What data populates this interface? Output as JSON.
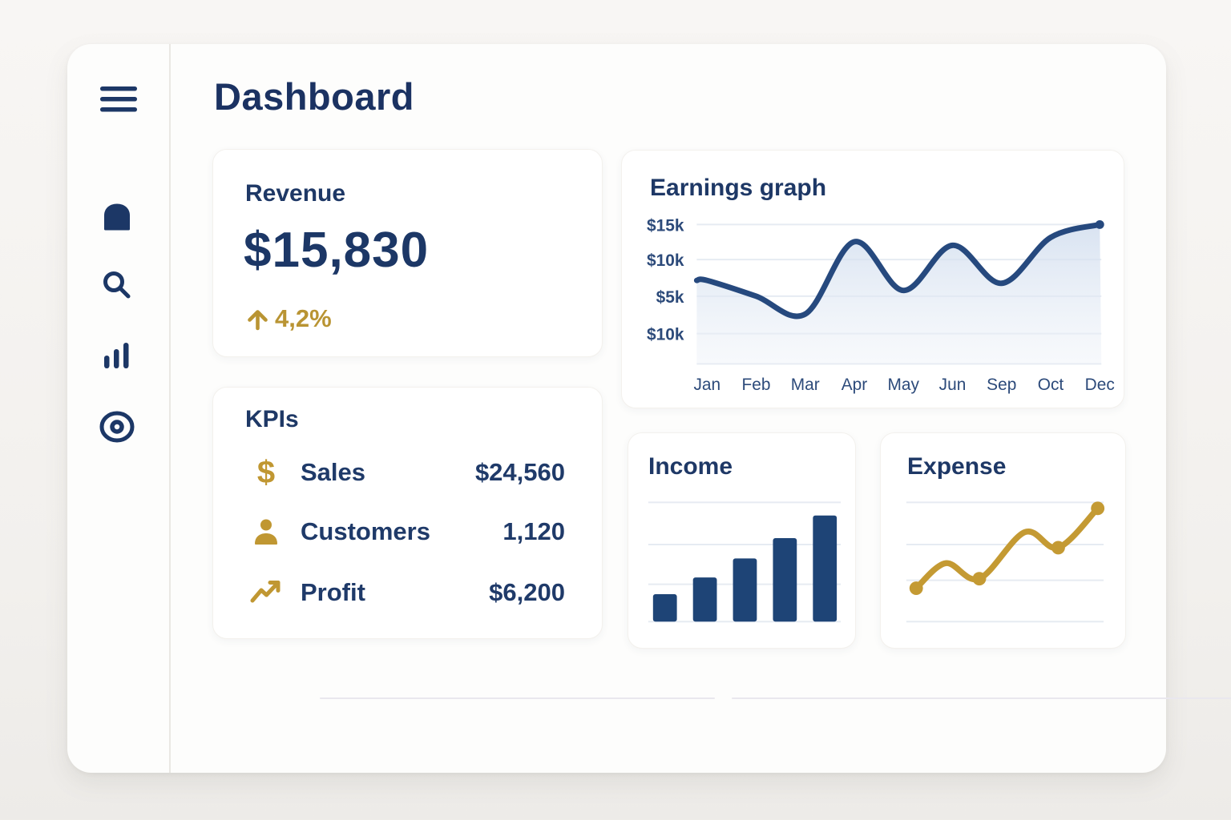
{
  "page": {
    "title": "Dashboard"
  },
  "colors": {
    "navy_text": "#1c3766",
    "navy_line": "#26497e",
    "navy_bar": "#1e4476",
    "gold": "#b99433",
    "gridline": "#e6ebf2",
    "axis_label": "#2c4a7a",
    "area_fill_top": "#cfdcee",
    "area_fill_bottom": "#eef2f8"
  },
  "sidebar": {
    "icons": [
      "menu-icon",
      "bookmark-icon",
      "search-icon",
      "bar-chart-icon",
      "target-icon"
    ]
  },
  "revenue_card": {
    "title": "Revenue",
    "value": "$15,830",
    "change": "4,2%",
    "change_direction": "up"
  },
  "kpis_card": {
    "title": "KPIs",
    "rows": [
      {
        "icon": "dollar-icon",
        "label": "Sales",
        "value": "$24,560"
      },
      {
        "icon": "user-icon",
        "label": "Customers",
        "value": "1,120"
      },
      {
        "icon": "trend-up-icon",
        "label": "Profit",
        "value": "$6,200"
      }
    ]
  },
  "chart_data": [
    {
      "id": "earnings",
      "type": "area",
      "title": "Earnings graph",
      "x": [
        "Jan",
        "Feb",
        "Mar",
        "Apr",
        "May",
        "Jun",
        "Sep",
        "Oct",
        "Dec"
      ],
      "values_k": [
        7.2,
        5,
        2.5,
        12.6,
        5.8,
        12.1,
        6.8,
        13.2,
        15
      ],
      "y_tick_labels": [
        "$15k",
        "$10k",
        "$5k",
        "$10k"
      ],
      "ylim_k": [
        0,
        15
      ],
      "grid": true,
      "legend": false,
      "line_color": "#26497e"
    },
    {
      "id": "income",
      "type": "bar",
      "title": "Income",
      "values_pct": [
        23,
        37,
        53,
        70,
        89
      ],
      "grid": true,
      "legend": false,
      "bar_color": "#1e4476"
    },
    {
      "id": "expense",
      "type": "line",
      "title": "Expense",
      "points_pct": [
        [
          5,
          28
        ],
        [
          20,
          49
        ],
        [
          37,
          36
        ],
        [
          60,
          75
        ],
        [
          77,
          62
        ],
        [
          97,
          95
        ]
      ],
      "dot_indices": [
        0,
        2,
        4,
        5
      ],
      "grid": true,
      "legend": false,
      "line_color": "#c49a33"
    }
  ]
}
